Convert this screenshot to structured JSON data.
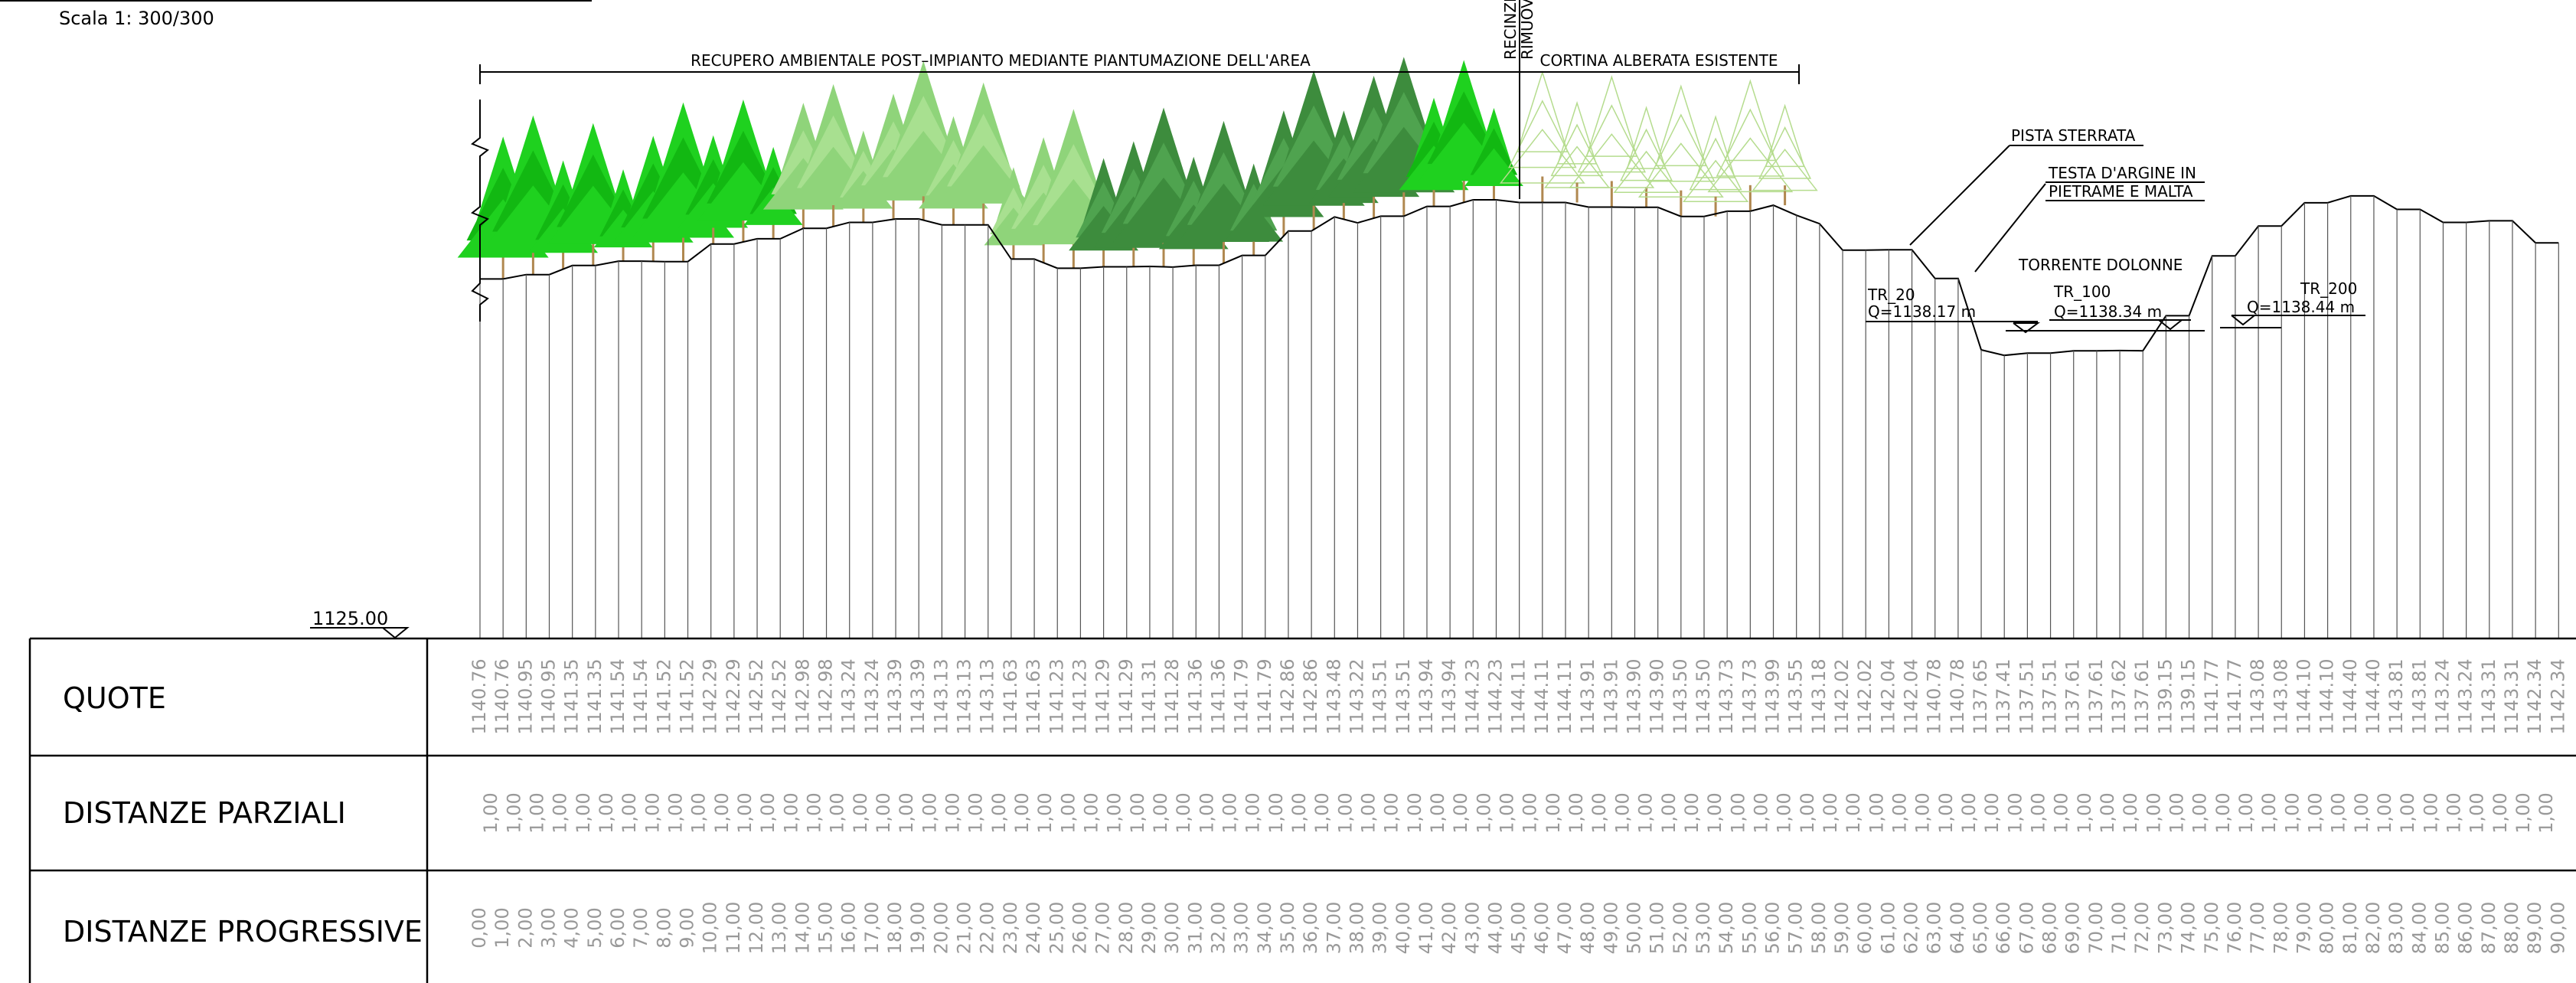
{
  "header": {
    "scale": "Scala  1: 300/300"
  },
  "datum": "1125.00",
  "annotations": {
    "reclaim": "RECUPERO AMBIENTALE POST–IMPIANTO MEDIANTE PIANTUMAZIONE DELL'AREA",
    "existing": "CORTINA ALBERATA ESISTENTE",
    "fence_1": "RECINZI",
    "fence_2": "RIMUOV",
    "track": "PISTA STERRATA",
    "bank_1": "TESTA D'ARGINE IN",
    "bank_2": "PIETRAME E MALTA",
    "river": "TORRENTE DOLONNE",
    "tr20": "TR_20",
    "q20": "Q=1138.17  m",
    "tr100": "TR_100",
    "q100": "Q=1138.34  m",
    "tr200": "TR_200",
    "q200": "Q=1138.44  m"
  },
  "table": {
    "row_labels": [
      "QUOTE",
      "DISTANZE  PARZIALI",
      "DISTANZE  PROGRESSIVE"
    ],
    "quote": [
      "1140.76",
      "1140.76",
      "1140.95",
      "1140.95",
      "1141.35",
      "1141.35",
      "1141.54",
      "1141.54",
      "1141.52",
      "1141.52",
      "1142.29",
      "1142.29",
      "1142.52",
      "1142.52",
      "1142.98",
      "1142.98",
      "1143.24",
      "1143.24",
      "1143.39",
      "1143.39",
      "1143.13",
      "1143.13",
      "1143.13",
      "1141.63",
      "1141.63",
      "1141.23",
      "1141.23",
      "1141.29",
      "1141.29",
      "1141.31",
      "1141.28",
      "1141.36",
      "1141.36",
      "1141.79",
      "1141.79",
      "1142.86",
      "1142.86",
      "1143.48",
      "1143.22",
      "1143.51",
      "1143.51",
      "1143.94",
      "1143.94",
      "1144.23",
      "1144.23",
      "1144.11",
      "1144.11",
      "1144.11",
      "1143.91",
      "1143.91",
      "1143.90",
      "1143.90",
      "1143.50",
      "1143.50",
      "1143.73",
      "1143.73",
      "1143.99",
      "1143.55",
      "1143.18",
      "1142.02",
      "1142.02",
      "1142.04",
      "1142.04",
      "1140.78",
      "1140.78",
      "1137.65",
      "1137.41",
      "1137.51",
      "1137.51",
      "1137.61",
      "1137.61",
      "1137.62",
      "1137.61",
      "1139.15",
      "1139.15",
      "1141.77",
      "1141.77",
      "1143.08",
      "1143.08",
      "1144.10",
      "1144.10",
      "1144.40",
      "1144.40",
      "1143.81",
      "1143.81",
      "1143.24",
      "1143.24",
      "1143.31",
      "1143.31",
      "1142.34",
      "1142.34"
    ],
    "partial": [
      "1,00",
      "1,00",
      "1,00",
      "1,00",
      "1,00",
      "1,00",
      "1,00",
      "1,00",
      "1,00",
      "1,00",
      "1,00",
      "1,00",
      "1,00",
      "1,00",
      "1,00",
      "1,00",
      "1,00",
      "1,00",
      "1,00",
      "1,00",
      "1,00",
      "1,00",
      "1,00",
      "1,00",
      "1,00",
      "1,00",
      "1,00",
      "1,00",
      "1,00",
      "1,00",
      "1,00",
      "1,00",
      "1,00",
      "1,00",
      "1,00",
      "1,00",
      "1,00",
      "1,00",
      "1,00",
      "1,00",
      "1,00",
      "1,00",
      "1,00",
      "1,00",
      "1,00",
      "1,00",
      "1,00",
      "1,00",
      "1,00",
      "1,00",
      "1,00",
      "1,00",
      "1,00",
      "1,00",
      "1,00",
      "1,00",
      "1,00",
      "1,00",
      "1,00",
      "1,00",
      "1,00",
      "1,00",
      "1,00",
      "1,00",
      "1,00",
      "1,00",
      "1,00",
      "1,00",
      "1,00",
      "1,00",
      "1,00",
      "1,00",
      "1,00",
      "1,00",
      "1,00",
      "1,00",
      "1,00",
      "1,00",
      "1,00",
      "1,00",
      "1,00",
      "1,00",
      "1,00",
      "1,00",
      "1,00",
      "1,00",
      "1,00",
      "1,00",
      "1,00",
      "1,00"
    ],
    "progressive": [
      "0,00",
      "1,00",
      "2,00",
      "3,00",
      "4,00",
      "5,00",
      "6,00",
      "7,00",
      "8,00",
      "9,00",
      "10,00",
      "11,00",
      "12,00",
      "13,00",
      "14,00",
      "15,00",
      "16,00",
      "17,00",
      "18,00",
      "19,00",
      "20,00",
      "21,00",
      "22,00",
      "23,00",
      "24,00",
      "25,00",
      "26,00",
      "27,00",
      "28,00",
      "29,00",
      "30,00",
      "31,00",
      "32,00",
      "33,00",
      "34,00",
      "35,00",
      "36,00",
      "37,00",
      "38,00",
      "39,00",
      "40,00",
      "41,00",
      "42,00",
      "43,00",
      "44,00",
      "45,00",
      "46,00",
      "47,00",
      "48,00",
      "49,00",
      "50,00",
      "51,00",
      "52,00",
      "53,00",
      "54,00",
      "55,00",
      "56,00",
      "57,00",
      "58,00",
      "59,00",
      "60,00",
      "61,00",
      "62,00",
      "63,00",
      "64,00",
      "65,00",
      "66,00",
      "67,00",
      "68,00",
      "69,00",
      "70,00",
      "71,00",
      "72,00",
      "73,00",
      "74,00",
      "75,00",
      "76,00",
      "77,00",
      "78,00",
      "79,00",
      "80,00",
      "81,00",
      "82,00",
      "83,00",
      "84,00",
      "85,00",
      "86,00",
      "87,00",
      "88,00",
      "89,00",
      "90,00"
    ]
  }
}
